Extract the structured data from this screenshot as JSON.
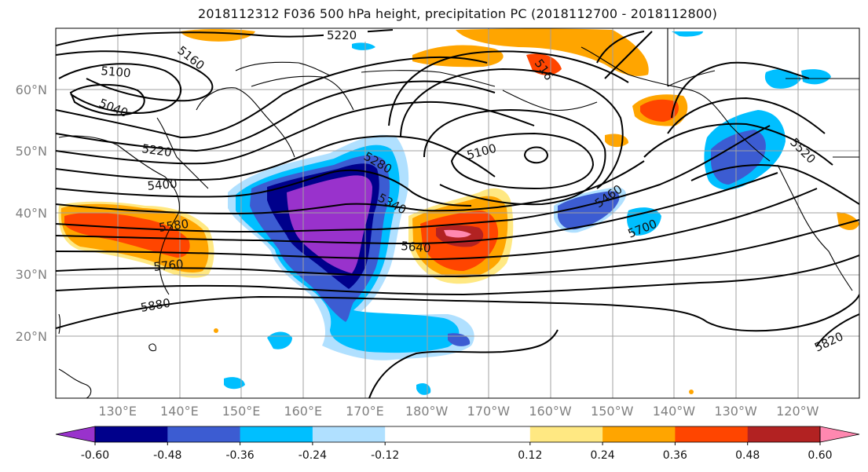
{
  "title": "2018112312 F036 500 hPa height, precipitation PC (2018112700 - 2018112800)",
  "lat_labels": [
    {
      "text": "60°N",
      "lat": 60
    },
    {
      "text": "50°N",
      "lat": 50
    },
    {
      "text": "40°N",
      "lat": 40
    },
    {
      "text": "30°N",
      "lat": 30
    },
    {
      "text": "20°N",
      "lat": 20
    }
  ],
  "lon_labels": [
    "130°E",
    "140°E",
    "150°E",
    "160°E",
    "170°E",
    "180°W",
    "170°W",
    "160°W",
    "150°W",
    "140°W",
    "130°W",
    "120°W"
  ],
  "map_extent": {
    "lon_min": 120,
    "lon_max": 250,
    "lat_min": 10,
    "lat_max": 70
  },
  "colorbar": {
    "colors": [
      "#9932cc",
      "#00008b",
      "#3c5cd2",
      "#00bfff",
      "#b0e0ff",
      "#ffffff",
      "#ffffff",
      "#ffe882",
      "#ffa500",
      "#ff4500",
      "#b22222",
      "#ff88b0"
    ],
    "tick_labels": [
      "-0.60",
      "-0.48",
      "-0.36",
      "-0.24",
      "-0.12",
      "0.12",
      "0.24",
      "0.36",
      "0.48",
      "0.60"
    ]
  },
  "contour_labels": [
    "5220",
    "5160",
    "5100",
    "5040",
    "5220",
    "5400",
    "5580",
    "5760",
    "5880",
    "5280",
    "5340",
    "5100",
    "5640",
    "5460",
    "5700",
    "5520",
    "5820",
    "516"
  ]
}
